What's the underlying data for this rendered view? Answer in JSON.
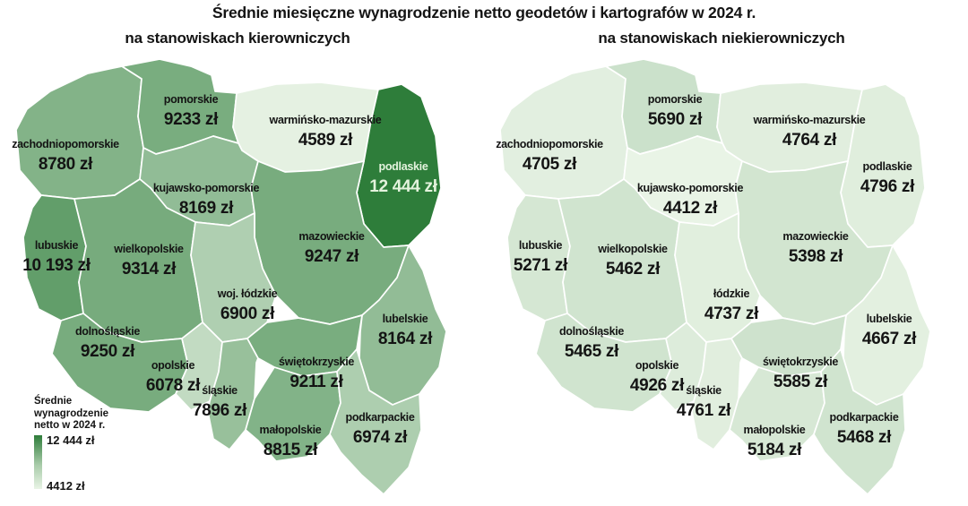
{
  "title": "Średnie miesięczne wynagrodzenie netto geodetów i kartografów w 2024 r.",
  "colors": {
    "scale_dark": "#2e7d3a",
    "scale_light": "#e9f4e6",
    "border": "#ffffff",
    "label_default": "#141414",
    "label_on_dark": "#e4f3dd"
  },
  "legend": {
    "title": "Średnie\nwynagrodzenie\nnetto w 2024 r.",
    "max": "12 444 zł",
    "min": "4412 zł"
  },
  "maps": [
    {
      "id": "kierownicze",
      "subtitle": "na stanowiskach kierowniczych",
      "regions": [
        {
          "id": "zachodniopomorskie",
          "name": "zachodniopomorskie",
          "value": "8780 zł",
          "fill": "#83b388"
        },
        {
          "id": "pomorskie",
          "name": "pomorskie",
          "value": "9233 zł",
          "fill": "#79ad7f"
        },
        {
          "id": "warminsko-mazurskie",
          "name": "warmińsko-mazurskie",
          "value": "4589 zł",
          "fill": "#e5f1e2"
        },
        {
          "id": "podlaskie",
          "name": "podlaskie",
          "value": "12 444 zł",
          "fill": "#2e7d3a",
          "text": "#e4f3dd"
        },
        {
          "id": "kujawsko-pomorskie",
          "name": "kujawsko-pomorskie",
          "value": "8169 zł",
          "fill": "#91bc96"
        },
        {
          "id": "mazowieckie",
          "name": "mazowieckie",
          "value": "9247 zł",
          "fill": "#78ac7e"
        },
        {
          "id": "lubuskie",
          "name": "lubuskie",
          "value": "10 193 zł",
          "fill": "#629e6a"
        },
        {
          "id": "wielkopolskie",
          "name": "wielkopolskie",
          "value": "9314 zł",
          "fill": "#77ab7d"
        },
        {
          "id": "lodzkie",
          "name": "woj. łódzkie",
          "value": "6900 zł",
          "fill": "#afcfb1"
        },
        {
          "id": "lubelskie",
          "name": "lubelskie",
          "value": "8164 zł",
          "fill": "#92bc96"
        },
        {
          "id": "dolnoslaskie",
          "name": "dolnośląskie",
          "value": "9250 zł",
          "fill": "#78ac7e"
        },
        {
          "id": "opolskie",
          "name": "opolskie",
          "value": "6078 zł",
          "fill": "#c2dbc2"
        },
        {
          "id": "slaskie",
          "name": "śląskie",
          "value": "7896 zł",
          "fill": "#98c09b"
        },
        {
          "id": "swietokrzyskie",
          "name": "świętokrzyskie",
          "value": "9211 zł",
          "fill": "#79ad7f"
        },
        {
          "id": "malopolskie",
          "name": "małopolskie",
          "value": "8815 zł",
          "fill": "#82b388"
        },
        {
          "id": "podkarpackie",
          "name": "podkarpackie",
          "value": "6974 zł",
          "fill": "#adceaf"
        }
      ]
    },
    {
      "id": "niekierownicze",
      "subtitle": "na stanowiskach niekierowniczych",
      "regions": [
        {
          "id": "zachodniopomorskie",
          "name": "zachodniopomorskie",
          "value": "4705 zł",
          "fill": "#e2efe0"
        },
        {
          "id": "pomorskie",
          "name": "pomorskie",
          "value": "5690 zł",
          "fill": "#cbe1cb"
        },
        {
          "id": "warminsko-mazurskie",
          "name": "warmińsko-mazurskie",
          "value": "4764 zł",
          "fill": "#e1eede"
        },
        {
          "id": "podlaskie",
          "name": "podlaskie",
          "value": "4796 zł",
          "fill": "#e0eedd"
        },
        {
          "id": "kujawsko-pomorskie",
          "name": "kujawsko-pomorskie",
          "value": "4412 zł",
          "fill": "#e9f4e6"
        },
        {
          "id": "mazowieckie",
          "name": "mazowieckie",
          "value": "5398 zł",
          "fill": "#d2e5d0"
        },
        {
          "id": "lubuskie",
          "name": "lubuskie",
          "value": "5271 zł",
          "fill": "#d5e7d3"
        },
        {
          "id": "wielkopolskie",
          "name": "wielkopolskie",
          "value": "5462 zł",
          "fill": "#d0e4cf"
        },
        {
          "id": "lodzkie",
          "name": "łódzkie",
          "value": "4737 zł",
          "fill": "#e1efde"
        },
        {
          "id": "lubelskie",
          "name": "lubelskie",
          "value": "4667 zł",
          "fill": "#e3f0e0"
        },
        {
          "id": "dolnoslaskie",
          "name": "dolnośląskie",
          "value": "5465 zł",
          "fill": "#d0e4cf"
        },
        {
          "id": "opolskie",
          "name": "opolskie",
          "value": "4926 zł",
          "fill": "#ddecdb"
        },
        {
          "id": "slaskie",
          "name": "śląskie",
          "value": "4761 zł",
          "fill": "#e1eede"
        },
        {
          "id": "swietokrzyskie",
          "name": "świętokrzyskie",
          "value": "5585 zł",
          "fill": "#cee2cd"
        },
        {
          "id": "malopolskie",
          "name": "małopolskie",
          "value": "5184 zł",
          "fill": "#d7e8d5"
        },
        {
          "id": "podkarpackie",
          "name": "podkarpackie",
          "value": "5468 zł",
          "fill": "#d0e4cf"
        }
      ]
    }
  ]
}
